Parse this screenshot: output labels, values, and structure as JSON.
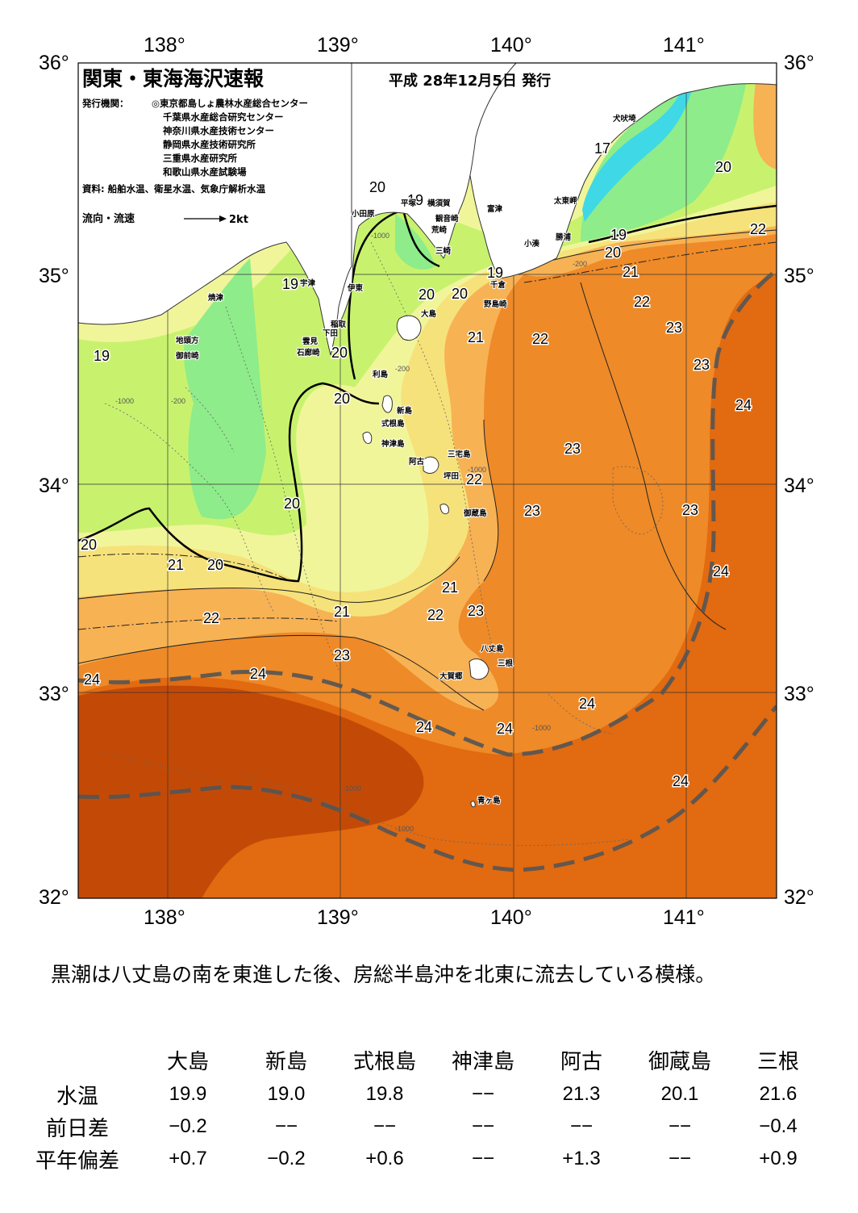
{
  "header": {
    "title": "関東・東海海沢速報",
    "date": "平成 28年12月5日 発行",
    "publisher_label": "発行機関：",
    "publishers": [
      "◎東京都島しょ農林水産総合センター",
      "千葉県水産総合研究センター",
      "神奈川県水産技術センター",
      "静岡県水産技術研究所",
      "三重県水産研究所",
      "和歌山県水産試験場"
    ],
    "sources": "資料: 船舶水温、衛星水温、気象庁解析水温",
    "current_legend_label": "流向・流速",
    "current_legend_speed": "2kt"
  },
  "axes": {
    "lon_labels": [
      "138°",
      "139°",
      "140°",
      "141°"
    ],
    "lat_labels": [
      "36°",
      "35°",
      "34°",
      "33°",
      "32°"
    ]
  },
  "colors": {
    "t17": "#3fd8e6",
    "t18": "#8eec8a",
    "t19": "#c8f26e",
    "t20": "#f1f59a",
    "t21": "#f6e27a",
    "t22": "#f7b254",
    "t23": "#ee8a28",
    "t24": "#e26a10",
    "t25": "#c34a06",
    "land": "#ffffff",
    "kuroshio": "#555555"
  },
  "isotherm_labels": [
    "17",
    "19",
    "20",
    "20",
    "21",
    "22",
    "19",
    "19",
    "19",
    "20",
    "20",
    "20",
    "20",
    "20",
    "20",
    "20",
    "20",
    "21",
    "21",
    "21",
    "22",
    "22",
    "22",
    "22",
    "23",
    "23",
    "23",
    "23",
    "23",
    "23",
    "23",
    "24",
    "24",
    "24",
    "24",
    "24",
    "24",
    "24",
    "24",
    "19",
    "20",
    "21",
    "22",
    "22"
  ],
  "place_names": [
    "犬吠埼",
    "太東岬",
    "勝浦",
    "小湊",
    "富津",
    "観音崎",
    "横須賀",
    "荒崎",
    "三崎",
    "平塚",
    "小田原",
    "千倉",
    "野島崎",
    "伊東",
    "稲取",
    "下田",
    "雲見",
    "石廊崎",
    "大島",
    "利島",
    "新島",
    "式根島",
    "神津島",
    "三宅島",
    "阿古",
    "坪田",
    "御蔵島",
    "八丈島",
    "三根",
    "大賀郷",
    "青ヶ島",
    "焼津",
    "地頭方",
    "御前崎",
    "宇津"
  ],
  "depth_labels": [
    "-200",
    "-1000"
  ],
  "summary": "黒潮は八丈島の南を東進した後、房総半島沖を北東に流去している模様。",
  "table": {
    "columns": [
      "大島",
      "新島",
      "式根島",
      "神津島",
      "阿古",
      "御蔵島",
      "三根"
    ],
    "rows": [
      {
        "label": "水温",
        "values": [
          "19.9",
          "19.0",
          "19.8",
          "−−",
          "21.3",
          "20.1",
          "21.6"
        ]
      },
      {
        "label": "前日差",
        "values": [
          "−0.2",
          "−−",
          "−−",
          "−−",
          "−−",
          "−−",
          "−0.4"
        ]
      },
      {
        "label": "平年偏差",
        "values": [
          "+0.7",
          "−0.2",
          "+0.6",
          "−−",
          "+1.3",
          "−−",
          "+0.9"
        ]
      }
    ]
  }
}
